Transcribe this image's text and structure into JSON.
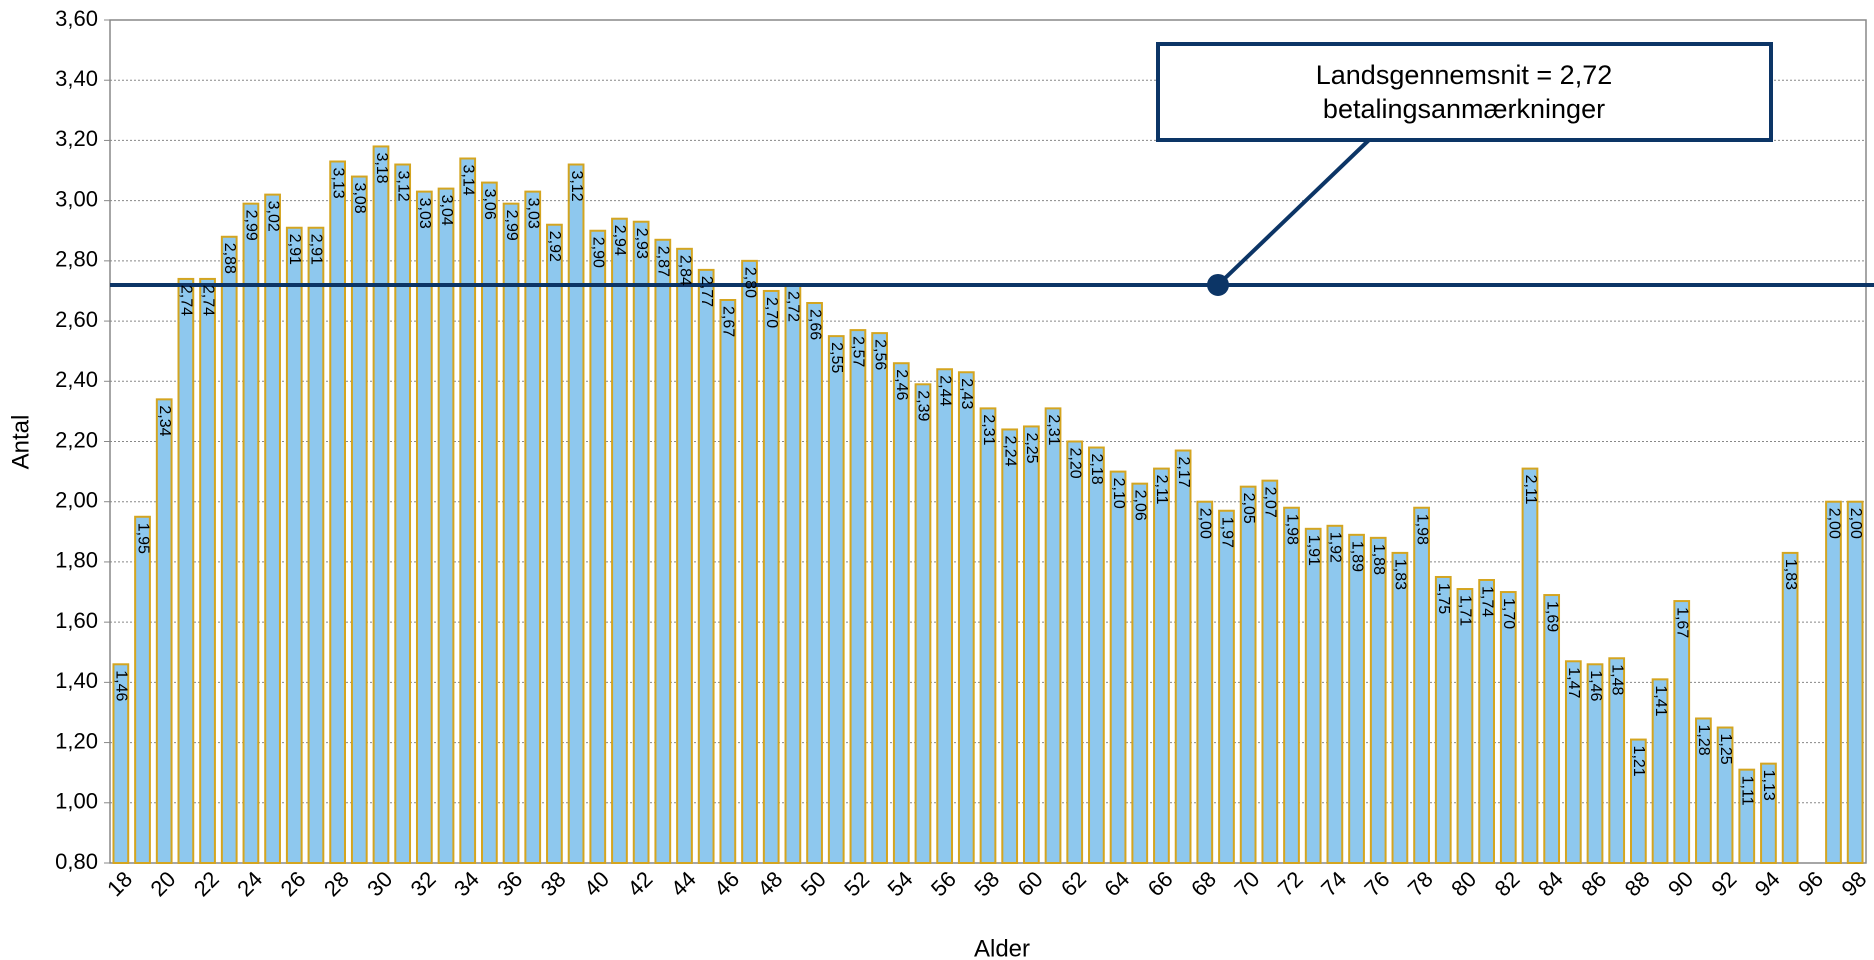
{
  "chart_data": {
    "type": "bar",
    "y_label": "Antal",
    "x_label": "Alder",
    "categories": [
      "18",
      null,
      "20",
      null,
      "22",
      null,
      "24",
      null,
      "26",
      null,
      "28",
      null,
      "30",
      null,
      "32",
      null,
      "34",
      null,
      "36",
      null,
      "38",
      null,
      "40",
      null,
      "42",
      null,
      "44",
      null,
      "46",
      null,
      "48",
      null,
      "50",
      null,
      "52",
      null,
      "54",
      null,
      "56",
      null,
      "58",
      null,
      "60",
      null,
      "62",
      null,
      "64",
      null,
      "66",
      null,
      "68",
      null,
      "70",
      null,
      "72",
      null,
      "74",
      null,
      "76",
      null,
      "78",
      null,
      "80",
      null,
      "82",
      null,
      "84",
      null,
      "86",
      null,
      "88",
      null,
      "90",
      null,
      "92",
      null,
      "94",
      null,
      "96",
      null,
      "98"
    ],
    "values": [
      1.46,
      1.95,
      2.34,
      2.74,
      2.74,
      2.88,
      2.99,
      3.02,
      2.91,
      2.91,
      3.13,
      3.08,
      3.18,
      3.12,
      3.03,
      3.04,
      3.14,
      3.06,
      2.99,
      3.03,
      2.92,
      3.12,
      2.9,
      2.94,
      2.93,
      2.87,
      2.84,
      2.77,
      2.67,
      2.8,
      2.7,
      2.72,
      2.66,
      2.55,
      2.57,
      2.56,
      2.46,
      2.39,
      2.44,
      2.43,
      2.31,
      2.24,
      2.25,
      2.31,
      2.2,
      2.18,
      2.1,
      2.06,
      2.11,
      2.17,
      2.0,
      1.97,
      2.05,
      2.07,
      1.98,
      1.91,
      1.92,
      1.89,
      1.88,
      1.83,
      1.98,
      1.75,
      1.71,
      1.74,
      1.7,
      2.11,
      1.69,
      1.47,
      1.46,
      1.48,
      1.21,
      1.41,
      1.67,
      1.28,
      1.25,
      1.11,
      1.13,
      1.83,
      null,
      2.0,
      2.0
    ],
    "value_labels": [
      "1,46",
      "1,95",
      "2,34",
      "2,74",
      "2,74",
      "2,88",
      "2,99",
      "3,02",
      "2,91",
      "2,91",
      "3,13",
      "3,08",
      "3,18",
      "3,12",
      "3,03",
      "3,04",
      "3,14",
      "3,06",
      "2,99",
      "3,03",
      "2,92",
      "3,12",
      "2,90",
      "2,94",
      "2,93",
      "2,87",
      "2,84",
      "2,77",
      "2,67",
      "2,80",
      "2,70",
      "2,72",
      "2,66",
      "2,55",
      "2,57",
      "2,56",
      "2,46",
      "2,39",
      "2,44",
      "2,43",
      "2,31",
      "2,24",
      "2,25",
      "2,31",
      "2,20",
      "2,18",
      "2,10",
      "2,06",
      "2,11",
      "2,17",
      "2,00",
      "1,97",
      "2,05",
      "2,07",
      "1,98",
      "1,91",
      "1,92",
      "1,89",
      "1,88",
      "1,83",
      "1,98",
      "1,75",
      "1,71",
      "1,74",
      "1,70",
      "2,11",
      "1,69",
      "1,47",
      "1,46",
      "1,48",
      "1,21",
      "1,41",
      "1,67",
      "1,28",
      "1,25",
      "1,11",
      "1,13",
      "1,83",
      null,
      "2,00",
      "2,00"
    ],
    "color": "#8ec8ee",
    "edge_color": "#d4a520",
    "ylim": [
      0.8,
      3.6
    ],
    "yticks": [
      {
        "value": 0.8,
        "label": "0,80"
      },
      {
        "value": 1.0,
        "label": "1,00"
      },
      {
        "value": 1.2,
        "label": "1,20"
      },
      {
        "value": 1.4,
        "label": "1,40"
      },
      {
        "value": 1.6,
        "label": "1,60"
      },
      {
        "value": 1.8,
        "label": "1,80"
      },
      {
        "value": 2.0,
        "label": "2,00"
      },
      {
        "value": 2.2,
        "label": "2,20"
      },
      {
        "value": 2.4,
        "label": "2,40"
      },
      {
        "value": 2.6,
        "label": "2,60"
      },
      {
        "value": 2.8,
        "label": "2,80"
      },
      {
        "value": 3.0,
        "label": "3,00"
      },
      {
        "value": 3.2,
        "label": "3,20"
      },
      {
        "value": 3.4,
        "label": "3,40"
      },
      {
        "value": 3.6,
        "label": "3,60"
      }
    ],
    "grid": true,
    "reference_line": {
      "value": 2.72,
      "color": "#0c3566",
      "annotation": [
        "Landsgennemsnit = 2,72",
        "betalingsanmærkninger"
      ]
    }
  }
}
